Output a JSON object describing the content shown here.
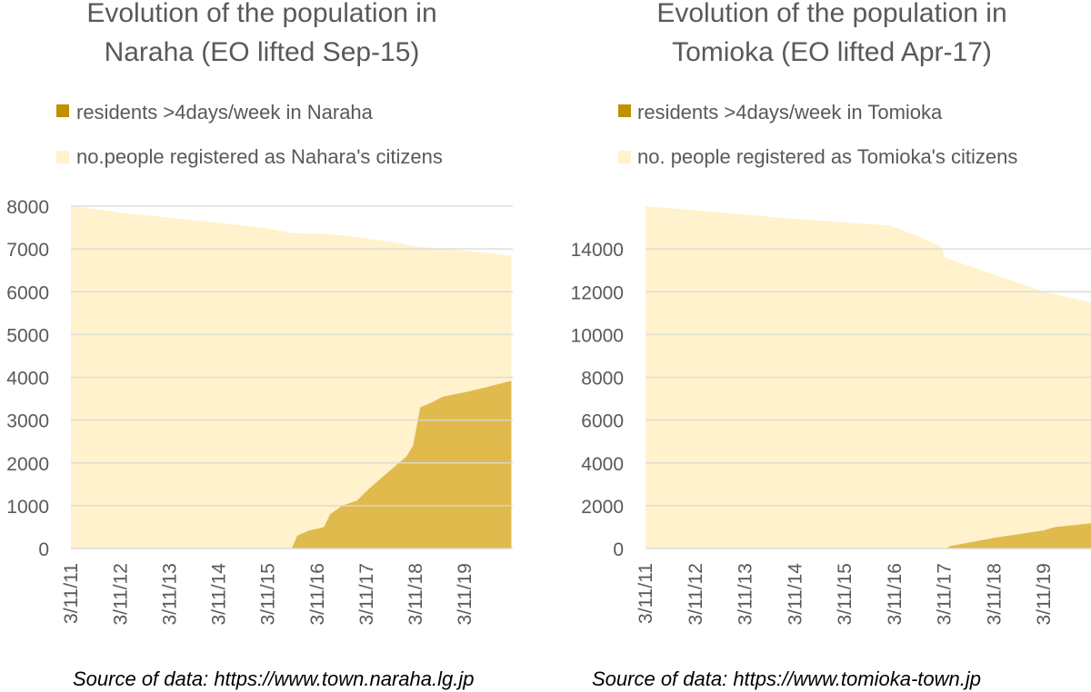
{
  "charts": [
    {
      "title_lines": [
        "Evolution of the population in",
        "Naraha (EO lifted Sep-15)"
      ],
      "legend": {
        "residents_label": "residents >4days/week in Naraha",
        "registered_label": "no.people registered as Nahara's citizens"
      },
      "source": "Source of data: https://www.town.naraha.lg.jp"
    },
    {
      "title_lines": [
        "Evolution of the population in",
        "Tomioka (EO lifted Apr-17)"
      ],
      "legend": {
        "residents_label": "residents >4days/week in Tomioka",
        "registered_label": "no. people registered as Tomioka's citizens"
      },
      "source": "Source of data: https://www.tomioka-town.jp"
    }
  ],
  "colors": {
    "registered_fill": "#fff2cc",
    "residents_fill": "#e0ba4c",
    "residents_legend": "#bf9000",
    "gridline": "#d9d9d9",
    "text": "#595959"
  },
  "chart_data": [
    {
      "type": "area",
      "title": "Evolution of the population in Naraha (EO lifted Sep-15)",
      "x_tick_labels": [
        "3/11/11",
        "3/11/12",
        "3/11/13",
        "3/11/14",
        "3/11/15",
        "3/11/16",
        "3/11/17",
        "3/11/18",
        "3/11/19"
      ],
      "x_range": [
        "2011-03-11",
        "2020-03-01"
      ],
      "ylim": [
        0,
        8000
      ],
      "y_ticks": [
        0,
        1000,
        2000,
        3000,
        4000,
        5000,
        6000,
        7000,
        8000
      ],
      "grid": true,
      "legend_position": "top",
      "series": [
        {
          "name": "no.people registered as Nahara's citizens",
          "points": [
            [
              "2011-03-11",
              8000
            ],
            [
              "2012-03-11",
              7850
            ],
            [
              "2013-03-11",
              7730
            ],
            [
              "2014-03-11",
              7610
            ],
            [
              "2015-03-11",
              7480
            ],
            [
              "2015-09-05",
              7370
            ],
            [
              "2016-03-11",
              7360
            ],
            [
              "2016-09-11",
              7320
            ],
            [
              "2017-03-11",
              7240
            ],
            [
              "2017-09-11",
              7170
            ],
            [
              "2018-03-11",
              7060
            ],
            [
              "2018-09-11",
              7000
            ],
            [
              "2019-03-11",
              6960
            ],
            [
              "2019-09-11",
              6900
            ],
            [
              "2020-02-20",
              6840
            ]
          ]
        },
        {
          "name": "residents >4days/week in Naraha",
          "points": [
            [
              "2011-03-11",
              0
            ],
            [
              "2015-09-04",
              0
            ],
            [
              "2015-10-15",
              300
            ],
            [
              "2016-01-11",
              420
            ],
            [
              "2016-05-01",
              500
            ],
            [
              "2016-06-15",
              800
            ],
            [
              "2016-09-11",
              1000
            ],
            [
              "2016-12-31",
              1120
            ],
            [
              "2017-04-01",
              1400
            ],
            [
              "2017-07-01",
              1650
            ],
            [
              "2017-10-01",
              1900
            ],
            [
              "2018-01-01",
              2150
            ],
            [
              "2018-02-20",
              2400
            ],
            [
              "2018-04-15",
              3300
            ],
            [
              "2018-07-01",
              3400
            ],
            [
              "2018-10-01",
              3550
            ],
            [
              "2019-03-11",
              3650
            ],
            [
              "2019-09-01",
              3780
            ],
            [
              "2020-02-20",
              3920
            ]
          ]
        }
      ]
    },
    {
      "type": "area",
      "title": "Evolution of the population in Tomioka (EO lifted Apr-17)",
      "x_tick_labels": [
        "3/11/11",
        "3/11/12",
        "3/11/13",
        "3/11/14",
        "3/11/15",
        "3/11/16",
        "3/11/17",
        "3/11/18",
        "3/11/19"
      ],
      "x_range": [
        "2011-03-11",
        "2020-02-20"
      ],
      "ylim": [
        0,
        16000
      ],
      "y_ticks": [
        0,
        2000,
        4000,
        6000,
        8000,
        10000,
        12000,
        14000
      ],
      "grid": true,
      "legend_position": "top",
      "series": [
        {
          "name": "no. people registered as Tomioka's citizens",
          "points": [
            [
              "2011-03-11",
              16000
            ],
            [
              "2012-03-11",
              15800
            ],
            [
              "2013-03-11",
              15600
            ],
            [
              "2014-03-11",
              15400
            ],
            [
              "2015-03-11",
              15250
            ],
            [
              "2016-02-01",
              15100
            ],
            [
              "2016-09-01",
              14600
            ],
            [
              "2017-02-15",
              14100
            ],
            [
              "2017-03-15",
              13600
            ],
            [
              "2018-03-11",
              12800
            ],
            [
              "2019-03-11",
              12000
            ],
            [
              "2020-02-20",
              11500
            ]
          ]
        },
        {
          "name": "residents >4days/week in Tomioka",
          "points": [
            [
              "2011-03-11",
              0
            ],
            [
              "2017-04-01",
              0
            ],
            [
              "2017-04-15",
              100
            ],
            [
              "2018-03-11",
              500
            ],
            [
              "2019-03-11",
              850
            ],
            [
              "2019-06-01",
              1000
            ],
            [
              "2020-02-20",
              1180
            ]
          ]
        }
      ]
    }
  ]
}
